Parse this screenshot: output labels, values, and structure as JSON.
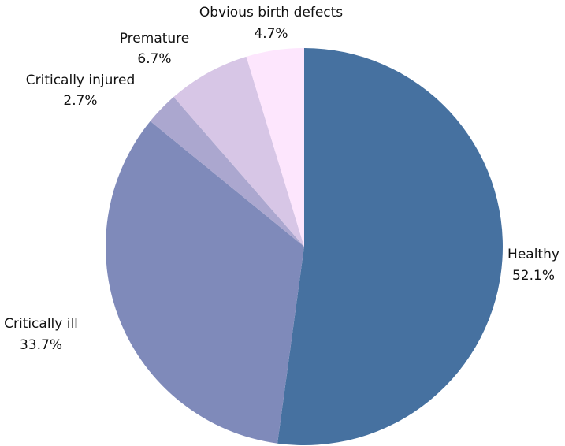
{
  "chart_data": {
    "type": "pie",
    "title": "",
    "start_angle_deg": 0,
    "direction": "clockwise",
    "slices": [
      {
        "label": "Healthy",
        "value": 52.1,
        "value_label": "52.1%",
        "color": "#4671a0"
      },
      {
        "label": "Critically ill",
        "value": 33.7,
        "value_label": "33.7%",
        "color": "#7f8aba"
      },
      {
        "label": "Critically injured",
        "value": 2.7,
        "value_label": "2.7%",
        "color": "#aba7cf"
      },
      {
        "label": "Premature",
        "value": 6.7,
        "value_label": "6.7%",
        "color": "#d7c6e6"
      },
      {
        "label": "Obvious birth defects",
        "value": 4.7,
        "value_label": "4.7%",
        "color": "#fde6fd"
      }
    ]
  }
}
